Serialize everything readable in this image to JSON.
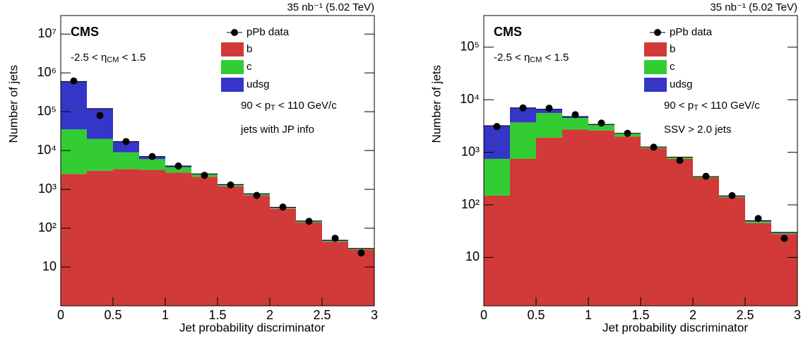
{
  "chart_data": [
    {
      "type": "histogram",
      "log_y": true,
      "lumi": "35 nb⁻¹ (5.02 TeV)",
      "experiment": "CMS",
      "annotations": [
        [
          {
            "t": "-2.5 < η"
          },
          {
            "t": "CM",
            "sub": true
          },
          {
            "t": " < 1.5"
          }
        ],
        [
          {
            "t": "90 < p"
          },
          {
            "t": "T",
            "sub": true
          },
          {
            "t": " < 110 GeV/c"
          }
        ],
        [
          {
            "t": "jets with JP info"
          }
        ]
      ],
      "x_label": "Jet probability discriminator",
      "y_label": "Number of jets",
      "bins": [
        0,
        0.25,
        0.5,
        0.75,
        1,
        1.25,
        1.5,
        1.75,
        2,
        2.25,
        2.5,
        2.75,
        3
      ],
      "series": [
        {
          "name": "b",
          "color": "#d23a3a",
          "values": [
            2500,
            3000,
            3300,
            3200,
            2700,
            2100,
            1200,
            700,
            320,
            140,
            45,
            28
          ]
        },
        {
          "name": "c",
          "color": "#33cc33",
          "values": [
            32500,
            17000,
            5700,
            2800,
            1000,
            300,
            80,
            40,
            15,
            8,
            2,
            1
          ]
        },
        {
          "name": "udsg",
          "color": "#3535c8",
          "values": [
            565000,
            100000,
            8000,
            1000,
            300,
            100,
            50,
            30,
            10,
            5,
            2,
            1
          ]
        }
      ],
      "data_points": {
        "name": "pPb data",
        "color": "#000000",
        "values": [
          620000,
          80000,
          17000,
          7000,
          4000,
          2300,
          1300,
          700,
          350,
          150,
          55,
          23
        ]
      },
      "xlim": [
        0,
        3
      ],
      "xticks": [
        0,
        0.5,
        1,
        1.5,
        2,
        2.5,
        3
      ],
      "ylim": [
        1,
        30000000
      ],
      "yticks": [
        10,
        {
          "value": 100,
          "label": "10²"
        },
        {
          "value": 1000,
          "label": "10³"
        },
        {
          "value": 10000,
          "label": "10⁴"
        },
        {
          "value": 100000,
          "label": "10⁵"
        },
        {
          "value": 1000000,
          "label": "10⁶"
        },
        {
          "value": 10000000,
          "label": "10⁷"
        }
      ]
    },
    {
      "type": "histogram",
      "log_y": true,
      "lumi": "35 nb⁻¹ (5.02 TeV)",
      "experiment": "CMS",
      "annotations": [
        [
          {
            "t": "-2.5 < η"
          },
          {
            "t": "CM",
            "sub": true
          },
          {
            "t": " < 1.5"
          }
        ],
        [
          {
            "t": "90 < p"
          },
          {
            "t": "T",
            "sub": true
          },
          {
            "t": " < 110 GeV/c"
          }
        ],
        [
          {
            "t": "SSV > 2.0 jets"
          }
        ]
      ],
      "x_label": "Jet probability discriminator",
      "y_label": "Number of jets",
      "bins": [
        0,
        0.25,
        0.5,
        0.75,
        1,
        1.25,
        1.5,
        1.75,
        2,
        2.25,
        2.5,
        2.75,
        3
      ],
      "series": [
        {
          "name": "b",
          "color": "#d23a3a",
          "values": [
            150,
            750,
            1900,
            2700,
            2600,
            2000,
            1200,
            750,
            330,
            140,
            45,
            28
          ]
        },
        {
          "name": "c",
          "color": "#33cc33",
          "values": [
            600,
            2950,
            3700,
            1800,
            700,
            300,
            50,
            50,
            10,
            5,
            3,
            1
          ]
        },
        {
          "name": "udsg",
          "color": "#3535c8",
          "values": [
            2450,
            3300,
            1000,
            300,
            100,
            0,
            10,
            10,
            5,
            3,
            2,
            1
          ]
        }
      ],
      "data_points": {
        "name": "pPb data",
        "color": "#000000",
        "values": [
          3100,
          7000,
          6900,
          5200,
          3600,
          2300,
          1250,
          700,
          350,
          150,
          55,
          23
        ]
      },
      "xlim": [
        0,
        3
      ],
      "xticks": [
        0,
        0.5,
        1,
        1.5,
        2,
        2.5,
        3
      ],
      "ylim": [
        1.2,
        400000
      ],
      "yticks": [
        10,
        {
          "value": 100,
          "label": "10²"
        },
        {
          "value": 1000,
          "label": "10³"
        },
        {
          "value": 10000,
          "label": "10⁴"
        },
        {
          "value": 100000,
          "label": "10⁵"
        }
      ]
    }
  ]
}
